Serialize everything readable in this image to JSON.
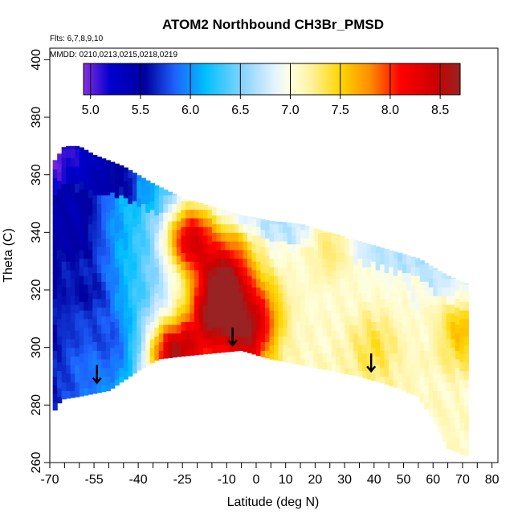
{
  "chart_data": {
    "type": "heatmap",
    "title": "ATOM2 Northbound CH3Br_PMSD",
    "notes": {
      "flights": "Flts: 6,7,8,9,10",
      "dates": "MMDD: 0210,0213,0215,0218,0219"
    },
    "xlabel": "Latitude (deg N)",
    "ylabel": "Theta (C)",
    "xlim": [
      -70,
      82
    ],
    "ylim": [
      260,
      404
    ],
    "x_ticks": [
      -70,
      -55,
      -40,
      -25,
      -10,
      0,
      10,
      20,
      30,
      40,
      50,
      60,
      70,
      80
    ],
    "x_minor_ticks": [
      -65,
      -60,
      -50,
      -45,
      -35,
      -30,
      -20,
      -15,
      -5,
      5,
      15,
      25,
      35,
      45,
      55,
      65,
      75
    ],
    "y_ticks": [
      260,
      280,
      300,
      320,
      340,
      360,
      380,
      400
    ],
    "colorbar": {
      "range": [
        4.93,
        8.7
      ],
      "ticks": [
        5.0,
        5.5,
        6.0,
        6.5,
        7.0,
        7.5,
        8.0,
        8.5
      ],
      "tick_labels": [
        "5.0",
        "5.5",
        "6.0",
        "6.5",
        "7.0",
        "7.5",
        "8.0",
        "8.5"
      ],
      "stops": [
        {
          "v": 4.93,
          "c": "#8a2be2"
        },
        {
          "v": 5.2,
          "c": "#0000cd"
        },
        {
          "v": 5.55,
          "c": "#0000a0"
        },
        {
          "v": 5.85,
          "c": "#1e64ff"
        },
        {
          "v": 6.15,
          "c": "#00bfff"
        },
        {
          "v": 6.55,
          "c": "#8fd6ff"
        },
        {
          "v": 6.85,
          "c": "#e6f4ff"
        },
        {
          "v": 7.0,
          "c": "#ffffe0"
        },
        {
          "v": 7.2,
          "c": "#fff3a0"
        },
        {
          "v": 7.5,
          "c": "#ffd700"
        },
        {
          "v": 7.8,
          "c": "#ff8c00"
        },
        {
          "v": 8.1,
          "c": "#ff0000"
        },
        {
          "v": 8.45,
          "c": "#cc0000"
        },
        {
          "v": 8.7,
          "c": "#992222"
        }
      ]
    },
    "field": {
      "top_boundary": [
        [
          -69,
          364
        ],
        [
          -65,
          370
        ],
        [
          -60,
          370
        ],
        [
          -55,
          367
        ],
        [
          -45,
          363
        ],
        [
          -35,
          357
        ],
        [
          -25,
          352
        ],
        [
          -15,
          349
        ],
        [
          -5,
          346
        ],
        [
          5,
          344
        ],
        [
          15,
          343
        ],
        [
          25,
          340
        ],
        [
          35,
          337
        ],
        [
          45,
          334
        ],
        [
          55,
          331
        ],
        [
          60,
          328
        ],
        [
          65,
          325
        ],
        [
          72,
          322
        ]
      ],
      "bottom_boundary": [
        [
          -69,
          277
        ],
        [
          -66,
          282
        ],
        [
          -60,
          283
        ],
        [
          -50,
          285
        ],
        [
          -40,
          292
        ],
        [
          -33,
          296
        ],
        [
          -25,
          297
        ],
        [
          -15,
          298
        ],
        [
          -5,
          299
        ],
        [
          5,
          296
        ],
        [
          15,
          294
        ],
        [
          25,
          292
        ],
        [
          35,
          290
        ],
        [
          45,
          287
        ],
        [
          55,
          283
        ],
        [
          60,
          275
        ],
        [
          65,
          265
        ],
        [
          72,
          262
        ],
        [
          72,
          322
        ]
      ],
      "hotspots": [
        {
          "x": -12,
          "y": 318,
          "v": 8.4
        },
        {
          "x": -22,
          "y": 338,
          "v": 8.3
        },
        {
          "x": -28,
          "y": 297,
          "v": 8.5
        },
        {
          "x": -3,
          "y": 303,
          "v": 8.2
        },
        {
          "x": -16,
          "y": 306,
          "v": 7.8
        },
        {
          "x": -8,
          "y": 330,
          "v": 7.7
        },
        {
          "x": 2,
          "y": 314,
          "v": 7.6
        },
        {
          "x": 40,
          "y": 300,
          "v": 7.4
        },
        {
          "x": 70,
          "y": 305,
          "v": 7.6
        },
        {
          "x": 25,
          "y": 335,
          "v": 7.3
        },
        {
          "x": -62,
          "y": 345,
          "v": 5.4
        },
        {
          "x": -58,
          "y": 320,
          "v": 5.6
        },
        {
          "x": -50,
          "y": 300,
          "v": 5.8
        }
      ],
      "arrows": [
        [
          -54,
          290
        ],
        [
          -8,
          303
        ],
        [
          39,
          294
        ]
      ]
    }
  }
}
